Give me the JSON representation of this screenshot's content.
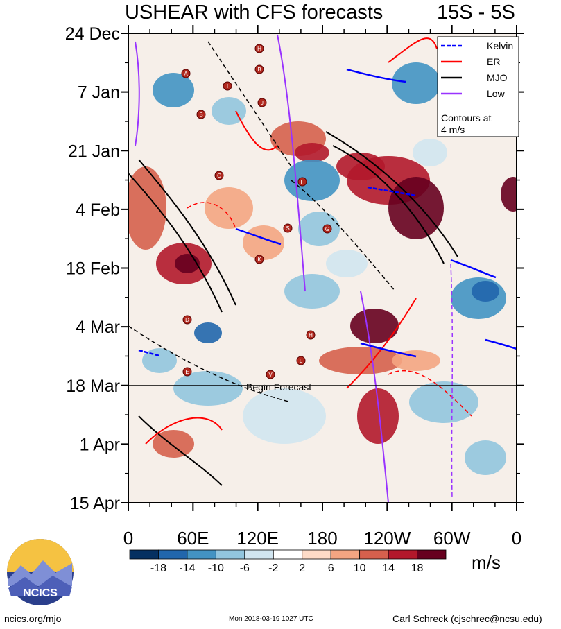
{
  "header": {
    "title": "USHEAR with CFS forecasts",
    "region": "15S - 5S"
  },
  "chart_data": {
    "type": "heatmap",
    "title": "USHEAR with CFS forecasts",
    "x_ticks": [
      "0",
      "60E",
      "120E",
      "180",
      "120W",
      "60W",
      "0"
    ],
    "x_ticks_deg": [
      0,
      60,
      120,
      180,
      240,
      300,
      360
    ],
    "y_ticks": [
      "24 Dec",
      "7 Jan",
      "21 Jan",
      "4 Feb",
      "18 Feb",
      "4 Mar",
      "18 Mar",
      "1 Apr",
      "15 Apr"
    ],
    "forecast_marker": "18 Mar",
    "forecast_label": "Begin Forecast",
    "colorbar": {
      "unit": "m/s",
      "tick_labels": [
        "-18",
        "-14",
        "-10",
        "-6",
        "-2",
        "2",
        "6",
        "10",
        "14",
        "18"
      ],
      "colors": [
        "#053061",
        "#2166ac",
        "#4393c3",
        "#92c5de",
        "#d1e5f0",
        "#ffffff",
        "#fddbc7",
        "#f4a582",
        "#d6604d",
        "#b2182b",
        "#67001f"
      ]
    },
    "legend": {
      "placement": "top-right",
      "items": [
        {
          "label": "Kelvin",
          "color": "#0000ff",
          "dashed": true
        },
        {
          "label": "ER",
          "color": "#ff0000",
          "dashed": false
        },
        {
          "label": "MJO",
          "color": "#000000",
          "dashed": false
        },
        {
          "label": "Low",
          "color": "#9933ff",
          "dashed": false
        }
      ],
      "note_line1": "Contours at",
      "note_line2": "4 m/s"
    },
    "storms": [
      "H",
      "B",
      "A",
      "I",
      "J",
      "B",
      "C",
      "F",
      "S",
      "G",
      "K",
      "D",
      "H",
      "L",
      "E",
      "V"
    ]
  },
  "footer": {
    "left": "ncics.org/mjo",
    "middle": "Mon 2018-03-19 1027 UTC",
    "right": "Carl Schreck (cjschrec@ncsu.edu)",
    "logo_text": "NCICS"
  }
}
